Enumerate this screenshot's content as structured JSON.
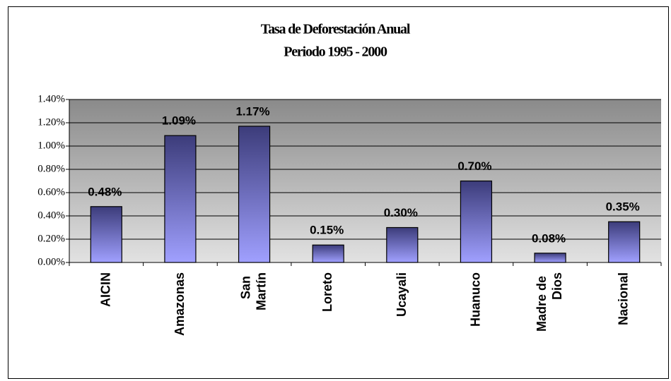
{
  "chart_data": {
    "type": "bar",
    "title": "Tasa de Deforestación Anual",
    "subtitle": "Periodo 1995 - 2000",
    "categories": [
      "AICIN",
      "Amazonas",
      "San Martín",
      "Loreto",
      "Ucayali",
      "Huanuco",
      "Madre de Dios",
      "Nacional"
    ],
    "values": [
      0.48,
      1.09,
      1.17,
      0.15,
      0.3,
      0.7,
      0.08,
      0.35
    ],
    "value_labels": [
      "0.48%",
      "1.09%",
      "1.17%",
      "0.15%",
      "0.30%",
      "0.70%",
      "0.08%",
      "0.35%"
    ],
    "color": "#4a4a8c",
    "ylim": [
      0,
      1.4
    ],
    "yticks": [
      {
        "value": 0,
        "label": "0.00%"
      },
      {
        "value": 0.2,
        "label": "0.20%"
      },
      {
        "value": 0.4,
        "label": "0.40%"
      },
      {
        "value": 0.6,
        "label": "0.60%"
      },
      {
        "value": 0.8,
        "label": "0.80%"
      },
      {
        "value": 1.0,
        "label": "1.00%"
      },
      {
        "value": 1.2,
        "label": "1.20%"
      },
      {
        "value": 1.4,
        "label": "1.40%"
      }
    ],
    "grid": true
  }
}
